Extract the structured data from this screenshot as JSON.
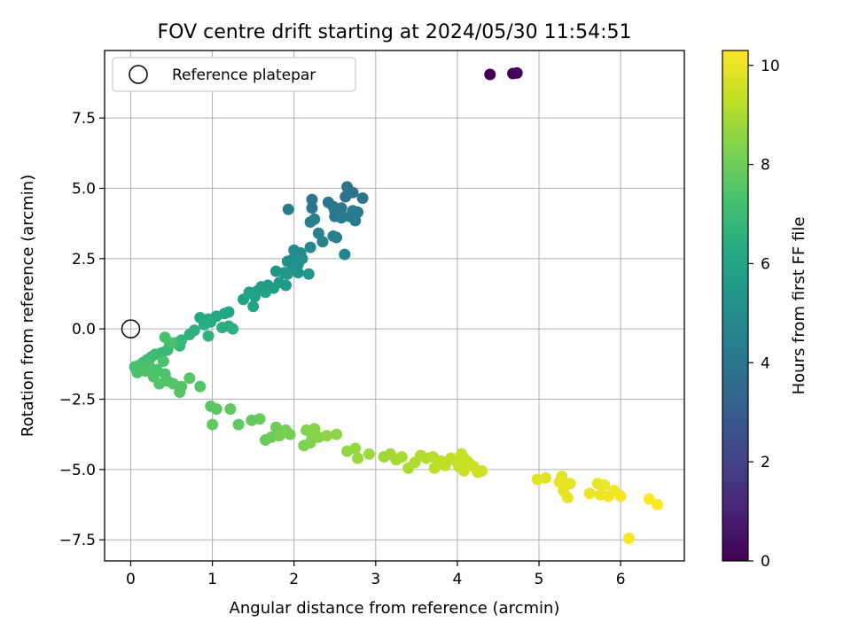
{
  "chart_data": {
    "type": "scatter",
    "title": "FOV centre drift starting at 2024/05/30 11:54:51",
    "xlabel": "Angular distance from reference (arcmin)",
    "ylabel": "Rotation from reference (arcmin)",
    "xlim": [
      -0.32,
      6.78
    ],
    "ylim": [
      -8.25,
      9.9
    ],
    "xticks": [
      0,
      1,
      2,
      3,
      4,
      5,
      6
    ],
    "xtick_labels": [
      "0",
      "1",
      "2",
      "3",
      "4",
      "5",
      "6"
    ],
    "yticks": [
      -7.5,
      -5.0,
      -2.5,
      0.0,
      2.5,
      5.0,
      7.5
    ],
    "ytick_labels": [
      "−7.5",
      "−5.0",
      "−2.5",
      "0.0",
      "2.5",
      "5.0",
      "7.5"
    ],
    "grid": true,
    "legend": {
      "placement": "top-left",
      "entries": [
        "Reference platepar"
      ]
    },
    "reference_point": {
      "name": "Reference platepar",
      "x": 0.0,
      "y": 0.0
    },
    "colorbar": {
      "label": "Hours from first FF file",
      "range": [
        0,
        10.3
      ],
      "ticks": [
        0,
        2,
        4,
        6,
        8,
        10
      ],
      "tick_labels": [
        "0",
        "2",
        "4",
        "6",
        "8",
        "10"
      ],
      "colormap": "viridis"
    },
    "series": [
      {
        "points": [
          [
            4.4,
            9.05,
            0
          ],
          [
            4.68,
            9.08,
            0.05
          ],
          [
            4.73,
            9.1,
            0.1
          ],
          [
            2.65,
            5.05,
            3.9
          ],
          [
            2.72,
            4.85,
            3.9
          ],
          [
            2.63,
            4.7,
            3.95
          ],
          [
            2.84,
            4.65,
            3.95
          ],
          [
            2.22,
            4.6,
            4.0
          ],
          [
            2.42,
            4.5,
            4.0
          ],
          [
            2.48,
            4.35,
            4.05
          ],
          [
            2.22,
            4.3,
            4.05
          ],
          [
            2.58,
            4.3,
            4.1
          ],
          [
            2.5,
            4.2,
            4.1
          ],
          [
            2.55,
            4.15,
            4.15
          ],
          [
            2.72,
            4.2,
            4.15
          ],
          [
            2.78,
            4.15,
            4.2
          ],
          [
            2.5,
            4.0,
            4.2
          ],
          [
            2.68,
            4.0,
            4.25
          ],
          [
            2.58,
            3.95,
            4.25
          ],
          [
            2.75,
            3.85,
            4.3
          ],
          [
            1.93,
            4.25,
            4.3
          ],
          [
            2.25,
            3.9,
            4.35
          ],
          [
            2.2,
            3.8,
            4.35
          ],
          [
            2.3,
            3.4,
            4.4
          ],
          [
            2.48,
            3.3,
            4.45
          ],
          [
            2.52,
            3.25,
            4.5
          ],
          [
            2.35,
            3.1,
            4.55
          ],
          [
            2.62,
            2.65,
            4.6
          ],
          [
            2.2,
            2.9,
            4.8
          ],
          [
            2.08,
            2.7,
            4.9
          ],
          [
            2.0,
            2.8,
            5.0
          ],
          [
            2.1,
            2.5,
            5.05
          ],
          [
            1.97,
            2.45,
            5.1
          ],
          [
            1.92,
            2.4,
            5.15
          ],
          [
            2.05,
            2.3,
            5.2
          ],
          [
            1.98,
            2.1,
            5.25
          ],
          [
            2.05,
            2.0,
            5.3
          ],
          [
            1.78,
            2.05,
            5.35
          ],
          [
            1.88,
            2.0,
            5.4
          ],
          [
            1.92,
            1.95,
            5.45
          ],
          [
            2.18,
            1.95,
            5.5
          ],
          [
            1.82,
            1.65,
            5.55
          ],
          [
            1.9,
            1.55,
            5.6
          ],
          [
            1.68,
            1.55,
            5.6
          ],
          [
            1.6,
            1.5,
            5.65
          ],
          [
            1.75,
            1.45,
            5.7
          ],
          [
            1.55,
            1.35,
            5.75
          ],
          [
            1.65,
            1.3,
            5.8
          ],
          [
            1.45,
            1.3,
            5.85
          ],
          [
            1.52,
            1.15,
            5.9
          ],
          [
            1.38,
            1.05,
            5.95
          ],
          [
            1.5,
            0.8,
            6.0
          ],
          [
            1.2,
            0.6,
            6.05
          ],
          [
            1.15,
            0.55,
            6.1
          ],
          [
            1.05,
            0.45,
            6.15
          ],
          [
            0.85,
            0.4,
            6.2
          ],
          [
            0.95,
            0.35,
            6.25
          ],
          [
            0.98,
            0.25,
            6.3
          ],
          [
            0.9,
            0.15,
            6.35
          ],
          [
            1.2,
            0.1,
            6.4
          ],
          [
            1.12,
            0.05,
            6.45
          ],
          [
            1.25,
            0.0,
            6.5
          ],
          [
            0.78,
            -0.05,
            6.55
          ],
          [
            0.72,
            -0.2,
            6.6
          ],
          [
            0.95,
            -0.25,
            6.65
          ],
          [
            0.62,
            -0.4,
            6.7
          ],
          [
            0.55,
            -0.5,
            6.75
          ],
          [
            0.48,
            -0.55,
            6.8
          ],
          [
            0.6,
            -0.6,
            6.85
          ],
          [
            0.45,
            -0.75,
            6.9
          ],
          [
            0.38,
            -0.85,
            6.95
          ],
          [
            0.3,
            -0.9,
            7.0
          ],
          [
            0.25,
            -1.0,
            7.05
          ],
          [
            0.2,
            -1.1,
            7.1
          ],
          [
            0.15,
            -1.2,
            7.15
          ],
          [
            0.1,
            -1.3,
            7.2
          ],
          [
            0.05,
            -1.35,
            7.25
          ],
          [
            0.08,
            -1.55,
            7.3
          ],
          [
            0.22,
            -1.25,
            7.3
          ],
          [
            0.32,
            -1.45,
            7.35
          ],
          [
            0.42,
            -1.6,
            7.35
          ],
          [
            0.28,
            -1.7,
            7.4
          ],
          [
            0.18,
            -1.5,
            7.4
          ],
          [
            0.35,
            -1.95,
            7.45
          ],
          [
            0.45,
            -1.85,
            7.45
          ],
          [
            0.52,
            -1.95,
            7.5
          ],
          [
            0.6,
            -2.25,
            7.5
          ],
          [
            0.42,
            -0.3,
            7.35
          ],
          [
            0.5,
            -0.5,
            7.3
          ],
          [
            0.4,
            -1.15,
            7.35
          ],
          [
            0.62,
            -2.05,
            7.5
          ],
          [
            0.85,
            -2.05,
            7.5
          ],
          [
            0.72,
            -1.75,
            7.55
          ],
          [
            0.98,
            -2.75,
            7.6
          ],
          [
            1.05,
            -2.85,
            7.65
          ],
          [
            1.22,
            -2.85,
            7.7
          ],
          [
            1.0,
            -3.4,
            7.75
          ],
          [
            1.32,
            -3.4,
            7.75
          ],
          [
            1.48,
            -3.25,
            7.8
          ],
          [
            1.58,
            -3.2,
            7.85
          ],
          [
            1.65,
            -3.95,
            7.9
          ],
          [
            1.72,
            -3.85,
            7.95
          ],
          [
            1.78,
            -3.5,
            8.0
          ],
          [
            1.85,
            -3.7,
            8.05
          ],
          [
            1.9,
            -3.6,
            8.1
          ],
          [
            1.95,
            -3.75,
            8.15
          ],
          [
            1.82,
            -3.8,
            8.2
          ],
          [
            2.12,
            -4.15,
            8.25
          ],
          [
            2.2,
            -4.05,
            8.3
          ],
          [
            2.22,
            -3.9,
            8.35
          ],
          [
            2.3,
            -3.85,
            8.4
          ],
          [
            2.15,
            -3.6,
            8.4
          ],
          [
            2.25,
            -3.55,
            8.45
          ],
          [
            2.4,
            -3.8,
            8.5
          ],
          [
            2.52,
            -3.75,
            8.55
          ],
          [
            2.65,
            -4.35,
            8.6
          ],
          [
            2.75,
            -4.25,
            8.65
          ],
          [
            2.78,
            -4.6,
            8.7
          ],
          [
            2.92,
            -4.45,
            8.75
          ],
          [
            3.1,
            -4.55,
            8.8
          ],
          [
            3.18,
            -4.45,
            8.85
          ],
          [
            3.25,
            -4.65,
            8.9
          ],
          [
            3.32,
            -4.55,
            8.95
          ],
          [
            3.4,
            -4.95,
            9.0
          ],
          [
            3.48,
            -4.75,
            9.05
          ],
          [
            3.55,
            -4.5,
            9.1
          ],
          [
            3.62,
            -4.6,
            9.15
          ],
          [
            3.7,
            -4.55,
            9.2
          ],
          [
            3.72,
            -4.95,
            9.2
          ],
          [
            3.8,
            -4.7,
            9.25
          ],
          [
            3.85,
            -4.85,
            9.3
          ],
          [
            3.92,
            -4.6,
            9.3
          ],
          [
            3.98,
            -4.7,
            9.35
          ],
          [
            4.02,
            -4.9,
            9.35
          ],
          [
            4.05,
            -4.45,
            9.4
          ],
          [
            4.08,
            -4.6,
            9.4
          ],
          [
            4.12,
            -4.7,
            9.45
          ],
          [
            4.15,
            -4.8,
            9.45
          ],
          [
            4.08,
            -5.05,
            9.5
          ],
          [
            4.2,
            -4.9,
            9.5
          ],
          [
            4.25,
            -5.1,
            9.55
          ],
          [
            4.3,
            -5.05,
            9.55
          ],
          [
            4.98,
            -5.35,
            9.8
          ],
          [
            5.08,
            -5.3,
            9.85
          ],
          [
            5.28,
            -5.25,
            9.85
          ],
          [
            5.25,
            -5.45,
            9.9
          ],
          [
            5.3,
            -5.75,
            9.9
          ],
          [
            5.35,
            -6.0,
            9.95
          ],
          [
            5.38,
            -5.5,
            9.95
          ],
          [
            5.62,
            -5.85,
            10.0
          ],
          [
            5.72,
            -5.5,
            10.0
          ],
          [
            5.75,
            -5.9,
            10.05
          ],
          [
            5.8,
            -5.55,
            10.05
          ],
          [
            5.85,
            -5.95,
            10.1
          ],
          [
            5.92,
            -5.75,
            10.1
          ],
          [
            6.0,
            -5.95,
            10.15
          ],
          [
            6.1,
            -7.45,
            10.2
          ],
          [
            6.35,
            -6.05,
            10.25
          ],
          [
            6.45,
            -6.25,
            10.3
          ]
        ]
      }
    ]
  }
}
